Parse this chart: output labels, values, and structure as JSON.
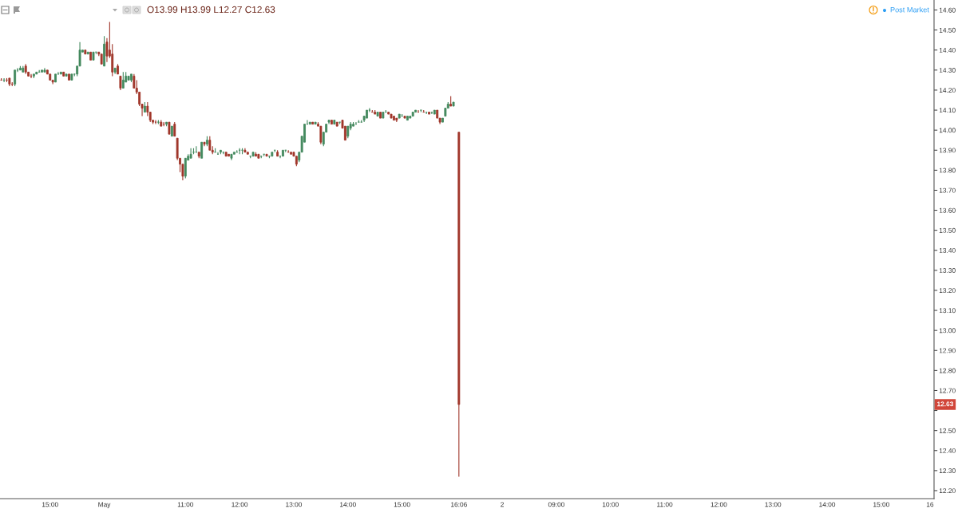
{
  "chart_data": {
    "type": "candlestick",
    "annotations": [
      "O13.99 H13.99 L12.27 C12.63",
      "Post Market",
      {
        "text": "12.63",
        "y": 12.63
      }
    ],
    "categories": [
      null,
      null,
      null,
      null,
      null,
      null,
      null,
      null,
      null,
      null,
      null,
      null,
      null,
      null,
      null,
      null,
      null,
      null,
      "15:00",
      null,
      null,
      null,
      null,
      null,
      null,
      null,
      null,
      null,
      null,
      null,
      null,
      null,
      null,
      null,
      null,
      null,
      null,
      null,
      "May",
      null,
      null,
      null,
      null,
      null,
      null,
      null,
      null,
      null,
      null,
      null,
      null,
      null,
      null,
      null,
      null,
      null,
      null,
      null,
      null,
      null,
      null,
      null,
      null,
      null,
      null,
      null,
      null,
      null,
      "11:00",
      null,
      null,
      null,
      null,
      null,
      null,
      null,
      null,
      null,
      null,
      null,
      null,
      null,
      null,
      null,
      null,
      null,
      null,
      null,
      "12:00",
      null,
      null,
      null,
      null,
      null,
      null,
      null,
      null,
      null,
      null,
      null,
      null,
      null,
      null,
      null,
      null,
      null,
      null,
      null,
      "13:00",
      null,
      null,
      null,
      null,
      null,
      null,
      null,
      null,
      null,
      null,
      null,
      null,
      null,
      null,
      null,
      null,
      null,
      null,
      null,
      "14:00",
      null,
      null,
      null,
      null,
      null,
      null,
      null,
      null,
      null,
      null,
      null,
      null,
      null,
      null,
      null,
      null,
      null,
      null,
      null,
      "15:00",
      null,
      null,
      null,
      null,
      null,
      null,
      null,
      null,
      null,
      null,
      null,
      null,
      null,
      null,
      null,
      null,
      null,
      null,
      null,
      null,
      "16:06",
      null,
      null,
      null,
      null,
      null,
      null,
      null,
      null,
      null,
      null,
      null,
      null,
      null,
      null,
      null,
      "2",
      null,
      null,
      null,
      null,
      null,
      null,
      null,
      null,
      null,
      null,
      null,
      null,
      null,
      null,
      null,
      null,
      null,
      null,
      null,
      "09:00",
      null,
      null,
      null,
      null,
      null,
      null,
      null,
      null,
      null,
      null,
      null,
      null,
      null,
      null,
      null,
      null,
      null,
      null,
      null,
      "10:00",
      null,
      null,
      null,
      null,
      null,
      null,
      null,
      null,
      null,
      null,
      null,
      null,
      null,
      null,
      null,
      null,
      null,
      null,
      null,
      "11:00",
      null,
      null,
      null,
      null,
      null,
      null,
      null,
      null,
      null,
      null,
      null,
      null,
      null,
      null,
      null,
      null,
      null,
      null,
      null,
      "12:00",
      null,
      null,
      null,
      null,
      null,
      null,
      null,
      null,
      null,
      null,
      null,
      null,
      null,
      null,
      null,
      null,
      null,
      null,
      null,
      "13:00",
      null,
      null,
      null,
      null,
      null,
      null,
      null,
      null,
      null,
      null,
      null,
      null,
      null,
      null,
      null,
      null,
      null,
      null,
      null,
      "14:00",
      null,
      null,
      null,
      null,
      null,
      null,
      null,
      null,
      null,
      null,
      null,
      null,
      null,
      null,
      null,
      null,
      null,
      null,
      null,
      "15:00",
      null,
      null,
      null,
      null,
      null,
      null,
      null,
      null,
      null,
      null,
      null,
      null,
      null,
      null,
      null,
      null,
      null,
      "16",
      null
    ],
    "ohlc": [
      [
        14.25,
        14.26,
        14.25,
        14.25
      ],
      [
        14.25,
        14.26,
        14.24,
        14.25
      ],
      [
        14.25,
        14.26,
        14.24,
        14.25
      ],
      [
        14.26,
        14.26,
        14.22,
        14.23
      ],
      [
        14.23,
        14.24,
        14.22,
        14.23
      ],
      [
        14.23,
        14.3,
        14.22,
        14.3
      ],
      [
        14.3,
        14.31,
        14.29,
        14.3
      ],
      [
        14.3,
        14.32,
        14.3,
        14.31
      ],
      [
        14.29,
        14.32,
        14.29,
        14.31
      ],
      [
        14.32,
        14.33,
        14.28,
        14.29
      ],
      [
        14.29,
        14.29,
        14.27,
        14.27
      ],
      [
        14.27,
        14.28,
        14.26,
        14.27
      ],
      [
        14.27,
        14.28,
        14.26,
        14.28
      ],
      [
        14.28,
        14.29,
        14.28,
        14.29
      ],
      [
        14.29,
        14.3,
        14.29,
        14.29
      ],
      [
        14.29,
        14.3,
        14.29,
        14.3
      ],
      [
        14.29,
        14.31,
        14.29,
        14.3
      ],
      [
        14.3,
        14.3,
        14.28,
        14.28
      ],
      [
        14.28,
        14.28,
        14.25,
        14.25
      ],
      [
        14.25,
        14.25,
        14.23,
        14.24
      ],
      [
        14.24,
        14.28,
        14.24,
        14.28
      ],
      [
        14.28,
        14.29,
        14.28,
        14.28
      ],
      [
        14.28,
        14.29,
        14.28,
        14.29
      ],
      [
        14.29,
        14.29,
        14.27,
        14.27
      ],
      [
        14.27,
        14.28,
        14.27,
        14.28
      ],
      [
        14.28,
        14.28,
        14.25,
        14.25
      ],
      [
        14.25,
        14.28,
        14.25,
        14.28
      ],
      [
        14.28,
        14.28,
        14.27,
        14.28
      ],
      [
        14.28,
        14.32,
        14.27,
        14.32
      ],
      [
        14.32,
        14.44,
        14.32,
        14.4
      ],
      [
        14.39,
        14.4,
        14.39,
        14.4
      ],
      [
        14.4,
        14.4,
        14.38,
        14.38
      ],
      [
        14.38,
        14.39,
        14.38,
        14.39
      ],
      [
        14.39,
        14.39,
        14.35,
        14.35
      ],
      [
        14.35,
        14.39,
        14.35,
        14.39
      ],
      [
        14.39,
        14.39,
        14.38,
        14.39
      ],
      [
        14.39,
        14.39,
        14.37,
        14.38
      ],
      [
        14.38,
        14.38,
        14.33,
        14.33
      ],
      [
        14.32,
        14.47,
        14.32,
        14.43
      ],
      [
        14.44,
        14.46,
        14.34,
        14.37
      ],
      [
        14.4,
        14.54,
        14.36,
        14.37
      ],
      [
        14.38,
        14.43,
        14.27,
        14.29
      ],
      [
        14.29,
        14.31,
        14.28,
        14.31
      ],
      [
        14.32,
        14.33,
        14.28,
        14.28
      ],
      [
        14.27,
        14.27,
        14.2,
        14.21
      ],
      [
        14.21,
        14.29,
        14.21,
        14.25
      ],
      [
        14.24,
        14.29,
        14.24,
        14.27
      ],
      [
        14.25,
        14.27,
        14.25,
        14.27
      ],
      [
        14.25,
        14.28,
        14.24,
        14.28
      ],
      [
        14.27,
        14.28,
        14.21,
        14.21
      ],
      [
        14.21,
        14.25,
        14.18,
        14.19
      ],
      [
        14.19,
        14.19,
        14.12,
        14.13
      ],
      [
        14.13,
        14.13,
        14.07,
        14.11
      ],
      [
        14.09,
        14.14,
        14.09,
        14.12
      ],
      [
        14.12,
        14.14,
        14.07,
        14.09
      ],
      [
        14.09,
        14.09,
        14.04,
        14.05
      ],
      [
        14.05,
        14.05,
        14.03,
        14.04
      ],
      [
        14.04,
        14.05,
        14.03,
        14.04
      ],
      [
        14.04,
        14.05,
        14.03,
        14.04
      ],
      [
        14.04,
        14.05,
        14.02,
        14.02
      ],
      [
        14.03,
        14.04,
        14.02,
        14.03
      ],
      [
        14.03,
        14.04,
        14.02,
        14.04
      ],
      [
        14.04,
        14.04,
        13.98,
        13.98
      ],
      [
        13.97,
        14.02,
        13.97,
        14.02
      ],
      [
        14.03,
        14.04,
        13.97,
        13.97
      ],
      [
        13.96,
        13.96,
        13.85,
        13.86
      ],
      [
        13.86,
        13.86,
        13.79,
        13.83
      ],
      [
        13.83,
        13.83,
        13.75,
        13.77
      ],
      [
        13.77,
        13.86,
        13.76,
        13.86
      ],
      [
        13.85,
        13.88,
        13.85,
        13.87
      ],
      [
        13.86,
        13.91,
        13.86,
        13.88
      ],
      [
        13.89,
        13.91,
        13.88,
        13.89
      ],
      [
        13.89,
        13.92,
        13.89,
        13.89
      ],
      [
        13.89,
        13.89,
        13.86,
        13.87
      ],
      [
        13.86,
        13.94,
        13.86,
        13.94
      ],
      [
        13.94,
        13.94,
        13.92,
        13.93
      ],
      [
        13.93,
        13.97,
        13.92,
        13.95
      ],
      [
        13.95,
        13.97,
        13.9,
        13.9
      ],
      [
        13.9,
        13.92,
        13.88,
        13.89
      ],
      [
        13.89,
        13.91,
        13.89,
        13.89
      ],
      [
        13.88,
        13.89,
        13.88,
        13.88
      ],
      [
        13.89,
        13.9,
        13.88,
        13.9
      ],
      [
        13.89,
        13.89,
        13.88,
        13.89
      ],
      [
        13.89,
        13.89,
        13.87,
        13.87
      ],
      [
        13.88,
        13.88,
        13.87,
        13.87
      ],
      [
        13.86,
        13.88,
        13.85,
        13.88
      ],
      [
        13.88,
        13.89,
        13.88,
        13.89
      ],
      [
        13.89,
        13.9,
        13.89,
        13.89
      ],
      [
        13.9,
        13.91,
        13.88,
        13.9
      ],
      [
        13.9,
        13.91,
        13.88,
        13.9
      ],
      [
        13.9,
        13.91,
        13.89,
        13.89
      ],
      [
        13.89,
        13.89,
        13.88,
        13.88
      ],
      [
        13.87,
        13.87,
        13.86,
        13.87
      ],
      [
        13.87,
        13.89,
        13.87,
        13.89
      ],
      [
        13.88,
        13.89,
        13.87,
        13.87
      ],
      [
        13.88,
        13.88,
        13.86,
        13.86
      ],
      [
        13.87,
        13.87,
        13.86,
        13.87
      ],
      [
        13.88,
        13.88,
        13.87,
        13.88
      ],
      [
        13.88,
        13.88,
        13.87,
        13.87
      ],
      [
        13.87,
        13.87,
        13.86,
        13.87
      ],
      [
        13.87,
        13.89,
        13.87,
        13.89
      ],
      [
        13.9,
        13.9,
        13.89,
        13.9
      ],
      [
        13.89,
        13.9,
        13.87,
        13.87
      ],
      [
        13.87,
        13.87,
        13.86,
        13.87
      ],
      [
        13.87,
        13.9,
        13.87,
        13.9
      ],
      [
        13.9,
        13.9,
        13.89,
        13.9
      ],
      [
        13.89,
        13.9,
        13.89,
        13.89
      ],
      [
        13.89,
        13.89,
        13.88,
        13.88
      ],
      [
        13.89,
        13.89,
        13.87,
        13.87
      ],
      [
        13.87,
        13.87,
        13.82,
        13.83
      ],
      [
        13.85,
        13.89,
        13.84,
        13.89
      ],
      [
        13.89,
        13.97,
        13.89,
        13.97
      ],
      [
        13.94,
        14.03,
        13.94,
        14.03
      ],
      [
        14.03,
        14.05,
        14.03,
        14.03
      ],
      [
        14.03,
        14.04,
        14.03,
        14.04
      ],
      [
        14.04,
        14.04,
        14.03,
        14.03
      ],
      [
        14.03,
        14.04,
        14.03,
        14.04
      ],
      [
        14.03,
        14.04,
        14.02,
        14.02
      ],
      [
        14.02,
        14.02,
        13.93,
        13.94
      ],
      [
        13.93,
        13.99,
        13.92,
        13.99
      ],
      [
        13.99,
        14.03,
        13.99,
        14.03
      ],
      [
        14.04,
        14.05,
        14.03,
        14.05
      ],
      [
        14.05,
        14.05,
        14.03,
        14.03
      ],
      [
        14.03,
        14.05,
        14.03,
        14.05
      ],
      [
        14.04,
        14.04,
        14.02,
        14.02
      ],
      [
        14.04,
        14.04,
        14.03,
        14.04
      ],
      [
        14.05,
        14.05,
        14.01,
        14.01
      ],
      [
        14.02,
        14.02,
        13.95,
        13.95
      ],
      [
        13.97,
        14.02,
        13.96,
        14.02
      ],
      [
        14.01,
        14.04,
        14.0,
        14.03
      ],
      [
        14.02,
        14.04,
        14.02,
        14.03
      ],
      [
        14.03,
        14.04,
        14.03,
        14.03
      ],
      [
        14.04,
        14.05,
        14.04,
        14.04
      ],
      [
        14.04,
        14.05,
        14.04,
        14.04
      ],
      [
        14.05,
        14.07,
        14.04,
        14.07
      ],
      [
        14.06,
        14.1,
        14.06,
        14.1
      ],
      [
        14.1,
        14.11,
        14.09,
        14.1
      ],
      [
        14.09,
        14.1,
        14.09,
        14.09
      ],
      [
        14.09,
        14.1,
        14.08,
        14.08
      ],
      [
        14.07,
        14.09,
        14.07,
        14.09
      ],
      [
        14.09,
        14.09,
        14.06,
        14.06
      ],
      [
        14.06,
        14.09,
        14.06,
        14.09
      ],
      [
        14.09,
        14.1,
        14.09,
        14.09
      ],
      [
        14.09,
        14.09,
        14.08,
        14.08
      ],
      [
        14.08,
        14.08,
        14.06,
        14.06
      ],
      [
        14.07,
        14.07,
        14.05,
        14.05
      ],
      [
        14.06,
        14.06,
        14.04,
        14.05
      ],
      [
        14.06,
        14.08,
        14.06,
        14.08
      ],
      [
        14.07,
        14.08,
        14.07,
        14.07
      ],
      [
        14.07,
        14.07,
        14.06,
        14.06
      ],
      [
        14.05,
        14.07,
        14.05,
        14.07
      ],
      [
        14.06,
        14.07,
        14.06,
        14.07
      ],
      [
        14.07,
        14.09,
        14.07,
        14.09
      ],
      [
        14.09,
        14.1,
        14.09,
        14.1
      ],
      [
        14.09,
        14.1,
        14.09,
        14.09
      ],
      [
        14.1,
        14.1,
        14.09,
        14.1
      ],
      [
        14.09,
        14.1,
        14.09,
        14.09
      ],
      [
        14.09,
        14.09,
        14.08,
        14.09
      ],
      [
        14.09,
        14.09,
        14.08,
        14.08
      ],
      [
        14.09,
        14.09,
        14.08,
        14.09
      ],
      [
        14.08,
        14.1,
        14.08,
        14.1
      ],
      [
        14.1,
        14.1,
        14.06,
        14.06
      ],
      [
        14.06,
        14.06,
        14.03,
        14.04
      ],
      [
        14.04,
        14.06,
        14.04,
        14.06
      ],
      [
        14.07,
        14.11,
        14.07,
        14.11
      ],
      [
        14.11,
        14.14,
        14.11,
        14.13
      ],
      [
        14.13,
        14.17,
        14.12,
        14.12
      ],
      [
        14.12,
        14.14,
        14.12,
        14.14
      ],
      null,
      [
        13.99,
        13.99,
        12.27,
        12.63
      ],
      null,
      null,
      null,
      null,
      null,
      null,
      null,
      null,
      null,
      null,
      null,
      null,
      null,
      null,
      null,
      null,
      null,
      null,
      null,
      null,
      null,
      null,
      null,
      null,
      null,
      null,
      null,
      null,
      null,
      null,
      null,
      null,
      null,
      null,
      null,
      null,
      null,
      null,
      null,
      null,
      null,
      null,
      null,
      null,
      null,
      null,
      null,
      null,
      null,
      null,
      null,
      null,
      null,
      null,
      null,
      null,
      null,
      null,
      null,
      null,
      null,
      null,
      null,
      null,
      null,
      null,
      null,
      null,
      null,
      null,
      null,
      null,
      null,
      null,
      null,
      null,
      null,
      null,
      null,
      null,
      null,
      null,
      null,
      null,
      null,
      null,
      null,
      null,
      null,
      null,
      null,
      null,
      null,
      null,
      null,
      null,
      null,
      null,
      null,
      null,
      null,
      null,
      null,
      null,
      null,
      null,
      null,
      null,
      null,
      null,
      null,
      null,
      null,
      null,
      null,
      null,
      null,
      null,
      null,
      null,
      null,
      null,
      null,
      null,
      null,
      null,
      null,
      null,
      null,
      null,
      null,
      null,
      null,
      null,
      null,
      null,
      null,
      null,
      null,
      null,
      null,
      null,
      null,
      null,
      null,
      null,
      null,
      null,
      null,
      null,
      null,
      null,
      null,
      null,
      null,
      null,
      null,
      null,
      null,
      null,
      null,
      null,
      null,
      null,
      null,
      null,
      null,
      null,
      null,
      null,
      null,
      null,
      null,
      null,
      null
    ],
    "colors": [
      "#a0362a",
      "#43895e",
      "#a0362a",
      "#a0362a",
      "#a0362a",
      "#43895e",
      "#43895e",
      "#43895e",
      "#43895e",
      "#a0362a",
      "#a0362a",
      "#a0362a",
      "#43895e",
      "#43895e",
      "#43895e",
      "#43895e",
      "#43895e",
      "#a0362a",
      "#a0362a",
      "#a0362a",
      "#43895e",
      "#43895e",
      "#43895e",
      "#a0362a",
      "#43895e",
      "#a0362a",
      "#43895e",
      "#43895e",
      "#43895e",
      "#43895e",
      "#43895e",
      "#a0362a",
      "#43895e",
      "#a0362a",
      "#43895e",
      "#43895e",
      "#a0362a",
      "#a0362a",
      "#43895e",
      "#a0362a",
      "#a0362a",
      "#a0362a",
      "#43895e",
      "#a0362a",
      "#a0362a",
      "#43895e",
      "#43895e",
      "#43895e",
      "#43895e",
      "#a0362a",
      "#a0362a",
      "#a0362a",
      "#a0362a",
      "#43895e",
      "#a0362a",
      "#a0362a",
      "#a0362a",
      "#a0362a",
      "#43895e",
      "#a0362a",
      "#a0362a",
      "#43895e",
      "#a0362a",
      "#43895e",
      "#a0362a",
      "#a0362a",
      "#a0362a",
      "#a0362a",
      "#43895e",
      "#43895e",
      "#43895e",
      "#43895e",
      "#43895e",
      "#a0362a",
      "#43895e",
      "#a0362a",
      "#43895e",
      "#a0362a",
      "#a0362a",
      "#43895e",
      "#43895e",
      "#43895e",
      "#43895e",
      "#a0362a",
      "#a0362a",
      "#43895e",
      "#43895e",
      "#43895e",
      "#43895e",
      "#43895e",
      "#a0362a",
      "#a0362a",
      "#43895e",
      "#43895e",
      "#a0362a",
      "#a0362a",
      "#43895e",
      "#43895e",
      "#a0362a",
      "#43895e",
      "#43895e",
      "#43895e",
      "#a0362a",
      "#43895e",
      "#43895e",
      "#43895e",
      "#a0362a",
      "#a0362a",
      "#a0362a",
      "#a0362a",
      "#43895e",
      "#43895e",
      "#43895e",
      "#43895e",
      "#43895e",
      "#a0362a",
      "#43895e",
      "#a0362a",
      "#a0362a",
      "#43895e",
      "#43895e",
      "#43895e",
      "#a0362a",
      "#43895e",
      "#a0362a",
      "#43895e",
      "#a0362a",
      "#a0362a",
      "#43895e",
      "#43895e",
      "#43895e",
      "#43895e",
      "#43895e",
      "#43895e",
      "#43895e",
      "#43895e",
      "#43895e",
      "#a0362a",
      "#a0362a",
      "#43895e",
      "#a0362a",
      "#43895e",
      "#43895e",
      "#a0362a",
      "#a0362a",
      "#a0362a",
      "#a0362a",
      "#43895e",
      "#43895e",
      "#a0362a",
      "#43895e",
      "#43895e",
      "#43895e",
      "#43895e",
      "#a0362a",
      "#43895e",
      "#a0362a",
      "#43895e",
      "#a0362a",
      "#43895e",
      "#43895e",
      "#a0362a",
      "#a0362a",
      "#43895e",
      "#43895e",
      "#43895e",
      "#a0362a",
      "#43895e",
      null,
      "#a0362a",
      null,
      null,
      null,
      null,
      null,
      null,
      null,
      null,
      null,
      null,
      null,
      null,
      null,
      null,
      null,
      null,
      null,
      null,
      null,
      null,
      null,
      null,
      null,
      null,
      null,
      null,
      null,
      null,
      null,
      null,
      null,
      null,
      null,
      null,
      null,
      null,
      null,
      null,
      null,
      null,
      null,
      null,
      null,
      null,
      null,
      null,
      null,
      null,
      null,
      null,
      null,
      null,
      null,
      null,
      null,
      null,
      null,
      null,
      null,
      null,
      null,
      null,
      null,
      null,
      null,
      null,
      null,
      null,
      null,
      null,
      null,
      null,
      null,
      null,
      null,
      null,
      null,
      null,
      null,
      null,
      null,
      null,
      null,
      null,
      null,
      null,
      null,
      null,
      null,
      null,
      null,
      null,
      null,
      null,
      null,
      null,
      null,
      null,
      null,
      null,
      null,
      null,
      null,
      null,
      null,
      null,
      null,
      null,
      null,
      null,
      null,
      null,
      null,
      null,
      null,
      null,
      null,
      null,
      null,
      null,
      null,
      null,
      null,
      null,
      null,
      null,
      null,
      null,
      null,
      null,
      null,
      null,
      null,
      null,
      null,
      null,
      null,
      null,
      null,
      null,
      null,
      null,
      null,
      null,
      null,
      null,
      null,
      null,
      null,
      null,
      null,
      null,
      null,
      null,
      null,
      null,
      null,
      null,
      null,
      null,
      null,
      null,
      null,
      null,
      null,
      null,
      null,
      null,
      null,
      null,
      null,
      null,
      null,
      null,
      null
    ],
    "ylim": [
      12.16,
      14.65
    ],
    "yticks": [
      {
        "value": 12.2,
        "label": "12.20"
      },
      {
        "value": 12.3,
        "label": "12.30"
      },
      {
        "value": 12.4,
        "label": "12.40"
      },
      {
        "value": 12.5,
        "label": "12.50"
      },
      {
        "value": 12.6,
        "label": null
      },
      {
        "value": 12.7,
        "label": "12.70"
      },
      {
        "value": 12.8,
        "label": "12.80"
      },
      {
        "value": 12.9,
        "label": "12.90"
      },
      {
        "value": 13.0,
        "label": "13.00"
      },
      {
        "value": 13.1,
        "label": "13.10"
      },
      {
        "value": 13.2,
        "label": "13.20"
      },
      {
        "value": 13.3,
        "label": "13.30"
      },
      {
        "value": 13.4,
        "label": "13.40"
      },
      {
        "value": 13.5,
        "label": "13.50"
      },
      {
        "value": 13.6,
        "label": "13.60"
      },
      {
        "value": 13.7,
        "label": "13.70"
      },
      {
        "value": 13.8,
        "label": "13.80"
      },
      {
        "value": 13.9,
        "label": "13.90"
      },
      {
        "value": 14.0,
        "label": "14.00"
      },
      {
        "value": 14.1,
        "label": "14.10"
      },
      {
        "value": 14.2,
        "label": "14.20"
      },
      {
        "value": 14.3,
        "label": "14.30"
      },
      {
        "value": 14.4,
        "label": "14.40"
      },
      {
        "value": 14.5,
        "label": "14.50"
      },
      {
        "value": 14.6,
        "label": "14.60"
      }
    ]
  }
}
